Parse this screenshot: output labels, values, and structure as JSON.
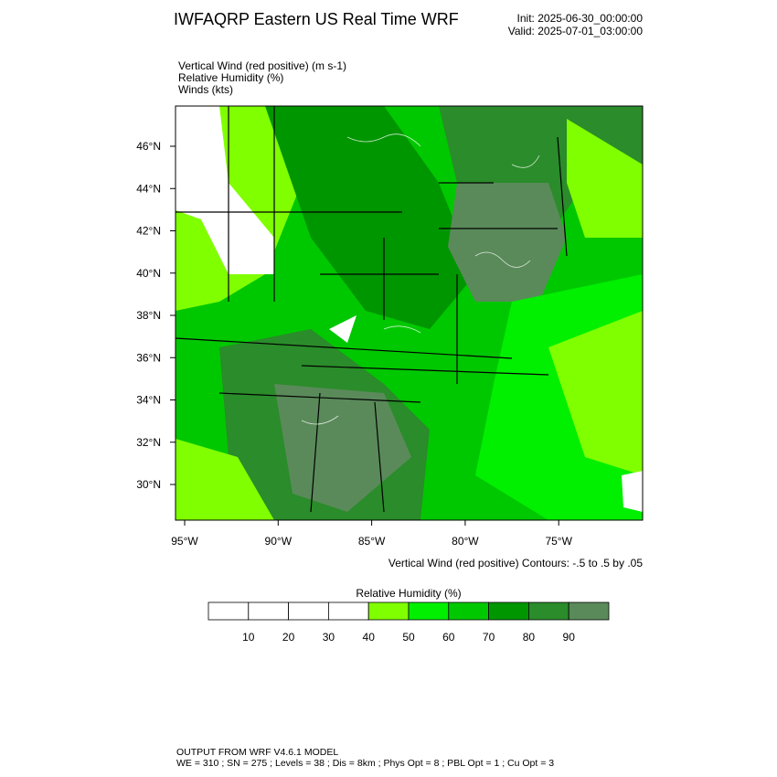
{
  "header": {
    "title": "IWFAQRP Eastern US Real Time WRF",
    "init": "Init: 2025-06-30_00:00:00",
    "valid": "Valid: 2025-07-01_03:00:00"
  },
  "fields": [
    "Vertical Wind (red positive)   (m s-1)",
    "Relative Humidity   (%)",
    "Winds   (kts)"
  ],
  "map": {
    "lat_labels": [
      "46°N",
      "44°N",
      "42°N",
      "40°N",
      "38°N",
      "36°N",
      "34°N",
      "32°N",
      "30°N"
    ],
    "lon_labels": [
      "95°W",
      "90°W",
      "85°W",
      "80°W",
      "75°W"
    ],
    "contour_note": "Vertical Wind (red positive) Contours: -.5 to .5 by .05"
  },
  "colorbar": {
    "title": "Relative Humidity  (%)",
    "colors": [
      "#ffffff",
      "#ffffff",
      "#ffffff",
      "#ffffff",
      "#80ff00",
      "#00f000",
      "#00c800",
      "#009600",
      "#2a8c2a",
      "#5a8a5a"
    ],
    "labels": [
      10,
      20,
      30,
      40,
      50,
      60,
      70,
      80,
      90
    ]
  },
  "footer": [
    "OUTPUT FROM WRF V4.6.1 MODEL",
    "WE = 310 ; SN = 275 ; Levels = 38 ; Dis = 8km ; Phys Opt = 8 ; PBL Opt = 1 ; Cu Opt = 3"
  ]
}
